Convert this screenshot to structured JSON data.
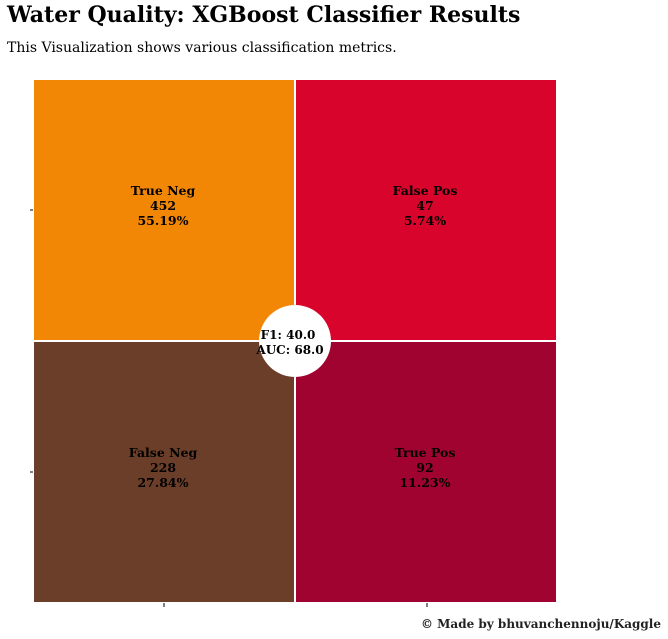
{
  "title": "Water Quality: XGBoost Classifier Results",
  "subtitle": "This Visualization shows various classification metrics.",
  "credit": "© Made by bhuvanchennoju/Kaggle",
  "chart_data": {
    "type": "heatmap",
    "title": "Water Quality: XGBoost Classifier Results",
    "subtitle": "This Visualization shows various classification metrics.",
    "cells": [
      {
        "row": 0,
        "col": 0,
        "label": "True Neg",
        "count": "452",
        "percent": "55.19%",
        "color": "#F28705"
      },
      {
        "row": 0,
        "col": 1,
        "label": "False Pos",
        "count": "47",
        "percent": "5.74%",
        "color": "#D9042B"
      },
      {
        "row": 1,
        "col": 0,
        "label": "False Neg",
        "count": "228",
        "percent": "27.84%",
        "color": "#6B3E2A"
      },
      {
        "row": 1,
        "col": 1,
        "label": "True Pos",
        "count": "92",
        "percent": "11.23%",
        "color": "#A0032F"
      }
    ],
    "metrics": {
      "f1": "F1: 40.0",
      "auc": "AUC: 68.0"
    },
    "grid": false,
    "ticks": {
      "x": [
        "",
        ""
      ],
      "y": [
        "",
        ""
      ]
    }
  }
}
